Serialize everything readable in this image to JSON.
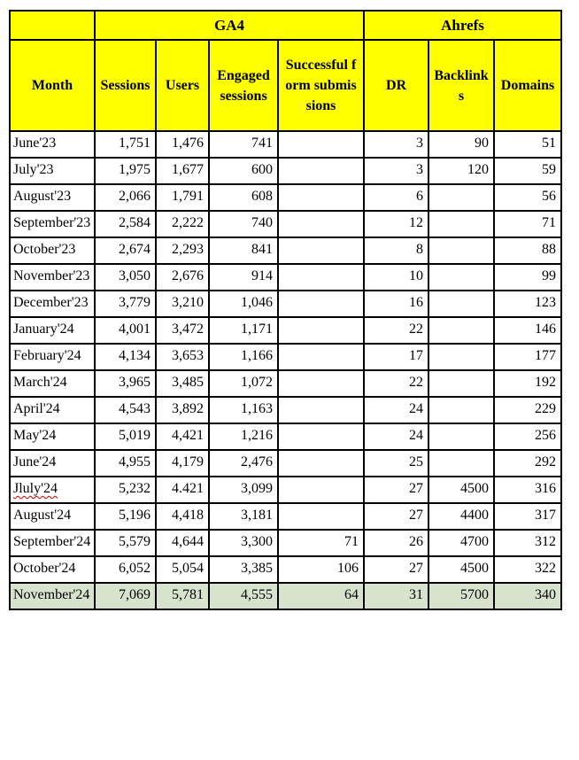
{
  "table": {
    "header_groups": [
      {
        "label": "",
        "colspan": 1
      },
      {
        "label": "GA4",
        "colspan": 4
      },
      {
        "label": "Ahrefs",
        "colspan": 3
      }
    ],
    "columns": [
      "Month",
      "Sessions",
      "Users",
      "Engaged sessions",
      "Successful form submissions",
      "DR",
      "Backlinks",
      "Domains"
    ],
    "rows": [
      {
        "month": "June'23",
        "sessions": "1,751",
        "users": "1,476",
        "engaged_sessions": "741",
        "form_submissions": "",
        "dr": "3",
        "backlinks": "90",
        "domains": "51"
      },
      {
        "month": "July'23",
        "sessions": "1,975",
        "users": "1,677",
        "engaged_sessions": "600",
        "form_submissions": "",
        "dr": "3",
        "backlinks": "120",
        "domains": "59"
      },
      {
        "month": "August'23",
        "sessions": "2,066",
        "users": "1,791",
        "engaged_sessions": "608",
        "form_submissions": "",
        "dr": "6",
        "backlinks": "",
        "domains": "56"
      },
      {
        "month": "September'23",
        "sessions": "2,584",
        "users": "2,222",
        "engaged_sessions": "740",
        "form_submissions": "",
        "dr": "12",
        "backlinks": "",
        "domains": "71"
      },
      {
        "month": "October'23",
        "sessions": "2,674",
        "users": "2,293",
        "engaged_sessions": "841",
        "form_submissions": "",
        "dr": "8",
        "backlinks": "",
        "domains": "88"
      },
      {
        "month": "November'23",
        "sessions": "3,050",
        "users": "2,676",
        "engaged_sessions": "914",
        "form_submissions": "",
        "dr": "10",
        "backlinks": "",
        "domains": "99"
      },
      {
        "month": "December'23",
        "sessions": "3,779",
        "users": "3,210",
        "engaged_sessions": "1,046",
        "form_submissions": "",
        "dr": "16",
        "backlinks": "",
        "domains": "123"
      },
      {
        "month": "January'24",
        "sessions": "4,001",
        "users": "3,472",
        "engaged_sessions": "1,171",
        "form_submissions": "",
        "dr": "22",
        "backlinks": "",
        "domains": "146"
      },
      {
        "month": "February'24",
        "sessions": "4,134",
        "users": "3,653",
        "engaged_sessions": "1,166",
        "form_submissions": "",
        "dr": "17",
        "backlinks": "",
        "domains": "177"
      },
      {
        "month": "March'24",
        "sessions": "3,965",
        "users": "3,485",
        "engaged_sessions": "1,072",
        "form_submissions": "",
        "dr": "22",
        "backlinks": "",
        "domains": "192"
      },
      {
        "month": "April'24",
        "sessions": "4,543",
        "users": "3,892",
        "engaged_sessions": "1,163",
        "form_submissions": "",
        "dr": "24",
        "backlinks": "",
        "domains": "229"
      },
      {
        "month": "May'24",
        "sessions": "5,019",
        "users": "4,421",
        "engaged_sessions": "1,216",
        "form_submissions": "",
        "dr": "24",
        "backlinks": "",
        "domains": "256"
      },
      {
        "month": "June'24",
        "sessions": "4,955",
        "users": "4,179",
        "engaged_sessions": "2,476",
        "form_submissions": "",
        "dr": "25",
        "backlinks": "",
        "domains": "292"
      },
      {
        "month": "Jluly'24",
        "sessions": "5,232",
        "users": "4.421",
        "engaged_sessions": "3,099",
        "form_submissions": "",
        "dr": "27",
        "backlinks": "4500",
        "domains": "316",
        "misspelled": true
      },
      {
        "month": "August'24",
        "sessions": "5,196",
        "users": "4,418",
        "engaged_sessions": "3,181",
        "form_submissions": "",
        "dr": "27",
        "backlinks": "4400",
        "domains": "317"
      },
      {
        "month": "September'24",
        "sessions": "5,579",
        "users": "4,644",
        "engaged_sessions": "3,300",
        "form_submissions": "71",
        "dr": "26",
        "backlinks": "4700",
        "domains": "312"
      },
      {
        "month": "October'24",
        "sessions": "6,052",
        "users": "5,054",
        "engaged_sessions": "3,385",
        "form_submissions": "106",
        "dr": "27",
        "backlinks": "4500",
        "domains": "322"
      },
      {
        "month": "November'24",
        "sessions": "7,069",
        "users": "5,781",
        "engaged_sessions": "4,555",
        "form_submissions": "64",
        "dr": "31",
        "backlinks": "5700",
        "domains": "340",
        "highlight": true
      }
    ],
    "colors": {
      "header_bg": "#ffff00",
      "highlight_row_bg": "#d7e3cc",
      "border": "#000000",
      "text": "#000000",
      "spellcheck_underline": "#cc0000",
      "page_bg": "#ffffff"
    }
  }
}
